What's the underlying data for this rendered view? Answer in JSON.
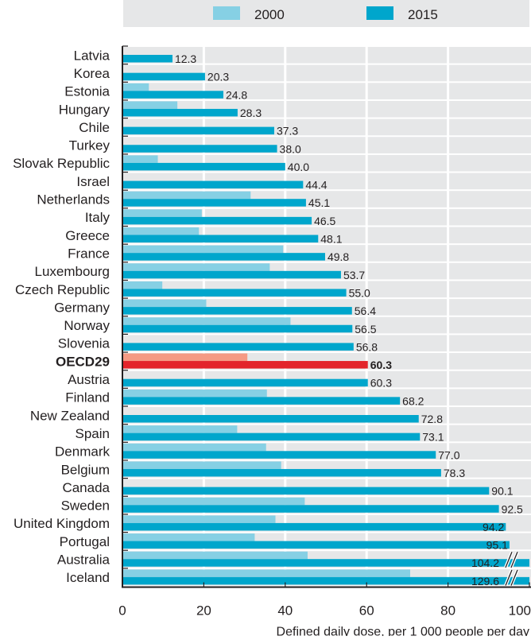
{
  "chart_data": {
    "type": "bar",
    "orientation": "horizontal",
    "title": "",
    "xlabel": "Defined daily dose, per 1 000 people per day",
    "ylabel": "",
    "xlim": [
      0,
      100
    ],
    "xticks": [
      0,
      20,
      40,
      60,
      80,
      100
    ],
    "grid": true,
    "legend": {
      "placement": "top",
      "entries": [
        {
          "name": "2000",
          "color": "#86d0e4"
        },
        {
          "name": "2015",
          "color": "#00a6cc"
        }
      ]
    },
    "highlight": {
      "category": "OECD29",
      "color_2000": "#f59a84",
      "color_2015": "#e3242b"
    },
    "axis_break": {
      "symbol": "//",
      "applies_to": [
        "Australia",
        "Iceland"
      ]
    },
    "categories": [
      "Latvia",
      "Korea",
      "Estonia",
      "Hungary",
      "Chile",
      "Turkey",
      "Slovak Republic",
      "Israel",
      "Netherlands",
      "Italy",
      "Greece",
      "France",
      "Luxembourg",
      "Czech Republic",
      "Germany",
      "Norway",
      "Slovenia",
      "OECD29",
      "Austria",
      "Finland",
      "New Zealand",
      "Spain",
      "Denmark",
      "Belgium",
      "Canada",
      "Sweden",
      "United Kingdom",
      "Portugal",
      "Australia",
      "Iceland"
    ],
    "series": [
      {
        "name": "2000",
        "values": [
          null,
          null,
          6.5,
          13.5,
          null,
          null,
          8.7,
          null,
          31.5,
          19.5,
          18.8,
          39.5,
          36.2,
          9.8,
          20.6,
          41.3,
          null,
          30.7,
          null,
          35.5,
          null,
          28.2,
          35.3,
          39.0,
          null,
          44.8,
          37.6,
          32.5,
          45.5,
          70.7
        ]
      },
      {
        "name": "2015",
        "values": [
          12.3,
          20.3,
          24.8,
          28.3,
          37.3,
          38.0,
          40.0,
          44.4,
          45.1,
          46.5,
          48.1,
          49.8,
          53.7,
          55.0,
          56.4,
          56.5,
          56.8,
          60.3,
          60.3,
          68.2,
          72.8,
          73.1,
          77.0,
          78.3,
          90.1,
          92.5,
          94.2,
          95.1,
          104.2,
          129.6
        ]
      }
    ],
    "value_labels": [
      "12.3",
      "20.3",
      "24.8",
      "28.3",
      "37.3",
      "38.0",
      "40.0",
      "44.4",
      "45.1",
      "46.5",
      "48.1",
      "49.8",
      "53.7",
      "55.0",
      "56.4",
      "56.5",
      "56.8",
      "60.3",
      "60.3",
      "68.2",
      "72.8",
      "73.1",
      "77.0",
      "78.3",
      "90.1",
      "92.5",
      "94.2",
      "95.1",
      "104.2",
      "129.6"
    ]
  }
}
